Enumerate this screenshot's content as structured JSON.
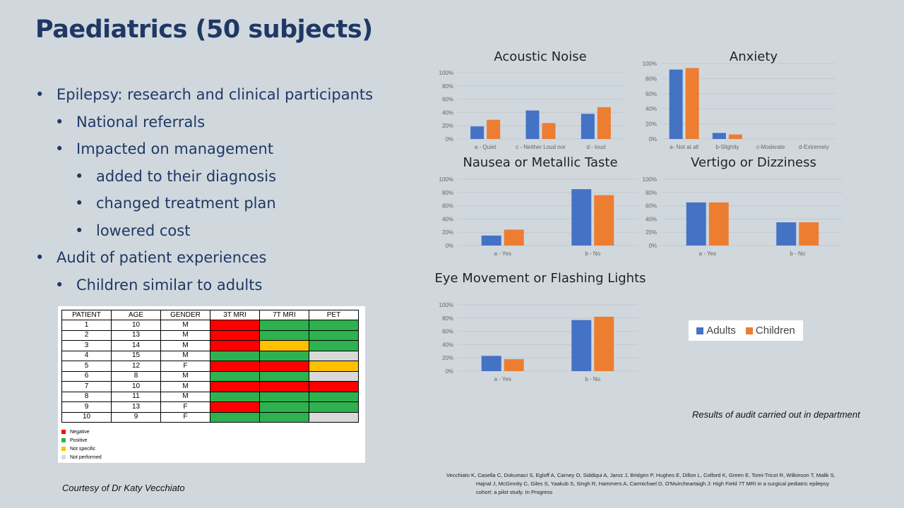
{
  "slide": {
    "title": "Paediatrics (50 subjects)",
    "bullets": [
      {
        "level": 1,
        "text": "Epilepsy: research and clinical participants"
      },
      {
        "level": 2,
        "text": "National referrals"
      },
      {
        "level": 2,
        "text": "Impacted on management"
      },
      {
        "level": 3,
        "text": "added to their diagnosis"
      },
      {
        "level": 3,
        "text": "changed  treatment plan"
      },
      {
        "level": 3,
        "text": "lowered cost"
      },
      {
        "level": 1,
        "text": "Audit of patient experiences"
      },
      {
        "level": 2,
        "text": "Children similar to adults"
      }
    ],
    "bullet_glyph": "•",
    "audit_note": "Results of audit carried out in department",
    "courtesy": "Courtesy  of  Dr Katy Vecchiato",
    "citation_line1": "Vecchiato  K, Casella  C, Dokumaci S, Egloff A, Carney  O, Siddiqui A, Jaroz J, Bridgen P, Hughes E, Dillon L, Colford K, Green E, Tomi-Tricot  R, Wilkinson T, Malik S,",
    "citation_line2": "Hajnal J, McGinnity C, Giles S, Yaakub S, Singh R,  Hammers  A, Carmichael D, O'Muircheartaigh  J: High Field 7T MRI in a surgical pediatric  epilepsy",
    "citation_line3": "cohort: a pilot study. In Progress"
  },
  "patient_table": {
    "headers": [
      "PATIENT",
      "AGE",
      "GENDER",
      "3T MRI",
      "7T MRI",
      "PET"
    ],
    "rows": [
      {
        "patient": "1",
        "age": "10",
        "gender": "M",
        "t3": "neg",
        "t7": "pos",
        "pet": "pos"
      },
      {
        "patient": "2",
        "age": "13",
        "gender": "M",
        "t3": "neg",
        "t7": "pos",
        "pet": "pos"
      },
      {
        "patient": "3",
        "age": "14",
        "gender": "M",
        "t3": "neg",
        "t7": "ns",
        "pet": "pos"
      },
      {
        "patient": "4",
        "age": "15",
        "gender": "M",
        "t3": "pos",
        "t7": "pos",
        "pet": "np"
      },
      {
        "patient": "5",
        "age": "12",
        "gender": "F",
        "t3": "neg",
        "t7": "neg",
        "pet": "ns"
      },
      {
        "patient": "6",
        "age": "8",
        "gender": "M",
        "t3": "pos",
        "t7": "pos",
        "pet": "np"
      },
      {
        "patient": "7",
        "age": "10",
        "gender": "M",
        "t3": "neg",
        "t7": "neg",
        "pet": "neg"
      },
      {
        "patient": "8",
        "age": "11",
        "gender": "M",
        "t3": "pos",
        "t7": "pos",
        "pet": "pos"
      },
      {
        "patient": "9",
        "age": "13",
        "gender": "F",
        "t3": "neg",
        "t7": "pos",
        "pet": "pos"
      },
      {
        "patient": "10",
        "age": "9",
        "gender": "F",
        "t3": "pos",
        "t7": "pos",
        "pet": "np"
      }
    ],
    "legend": [
      {
        "key": "neg",
        "label": "Negative",
        "color": "#ff0000"
      },
      {
        "key": "pos",
        "label": "Positive",
        "color": "#2eb24f"
      },
      {
        "key": "ns",
        "label": "Not specific",
        "color": "#ffc000"
      },
      {
        "key": "np",
        "label": "Not performed",
        "color": "#d9d9d9"
      }
    ]
  },
  "series_legend": [
    {
      "name": "Adults",
      "color": "#4472c4"
    },
    {
      "name": "Children",
      "color": "#ed7d31"
    }
  ],
  "chart_data": [
    {
      "type": "bar",
      "title": "Acoustic Noise",
      "categories": [
        "a - Quiet",
        "c - Neither Loud nor",
        "d - loud"
      ],
      "series": [
        {
          "name": "Adults",
          "values": [
            19,
            43,
            38
          ]
        },
        {
          "name": "Children",
          "values": [
            29,
            24,
            48
          ]
        }
      ],
      "ylim": [
        0,
        100
      ],
      "yticks": [
        "0%",
        "20%",
        "40%",
        "60%",
        "80%",
        "100%"
      ]
    },
    {
      "type": "bar",
      "title": "Anxiety",
      "categories": [
        "a- Not at all",
        "b-Slightly",
        "c-Moderate",
        "d-Extremely"
      ],
      "series": [
        {
          "name": "Adults",
          "values": [
            92,
            8,
            0,
            0
          ]
        },
        {
          "name": "Children",
          "values": [
            94,
            6,
            0,
            0
          ]
        }
      ],
      "ylim": [
        0,
        100
      ],
      "yticks": [
        "0%",
        "20%",
        "40%",
        "60%",
        "80%",
        "100%"
      ]
    },
    {
      "type": "bar",
      "title": "Nausea or Metallic Taste",
      "categories": [
        "a - Yes",
        "b - No"
      ],
      "series": [
        {
          "name": "Adults",
          "values": [
            15,
            85
          ]
        },
        {
          "name": "Children",
          "values": [
            24,
            76
          ]
        }
      ],
      "ylim": [
        0,
        100
      ],
      "yticks": [
        "0%",
        "20%",
        "40%",
        "60%",
        "80%",
        "100%"
      ]
    },
    {
      "type": "bar",
      "title": "Vertigo or Dizziness",
      "categories": [
        "a - Yes",
        "b - No"
      ],
      "series": [
        {
          "name": "Adults",
          "values": [
            65,
            35
          ]
        },
        {
          "name": "Children",
          "values": [
            65,
            35
          ]
        }
      ],
      "ylim": [
        0,
        100
      ],
      "yticks": [
        "0%",
        "20%",
        "40%",
        "60%",
        "80%",
        "100%"
      ]
    },
    {
      "type": "bar",
      "title": "Eye Movement or Flashing Lights",
      "categories": [
        "a - Yes",
        "b - No"
      ],
      "series": [
        {
          "name": "Adults",
          "values": [
            23,
            77
          ]
        },
        {
          "name": "Children",
          "values": [
            18,
            82
          ]
        }
      ],
      "ylim": [
        0,
        100
      ],
      "yticks": [
        "0%",
        "20%",
        "40%",
        "60%",
        "80%",
        "100%"
      ]
    }
  ]
}
